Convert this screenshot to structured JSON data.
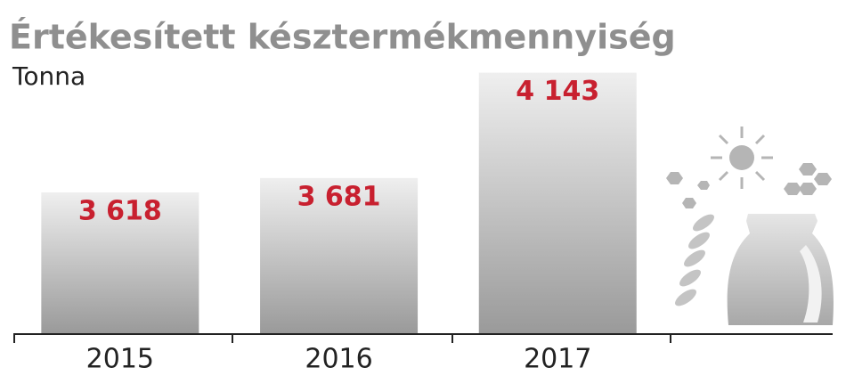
{
  "chart_data": {
    "type": "bar",
    "title": "Értékesített késztermékmennyiség",
    "subtitle": "Tonna",
    "categories": [
      "2015",
      "2016",
      "2017"
    ],
    "values": [
      3618,
      3681,
      4143
    ],
    "value_labels": [
      "3 618",
      "3 681",
      "4 143"
    ],
    "label_color": "#c8202f",
    "ylim": [
      3000,
      4200
    ]
  }
}
